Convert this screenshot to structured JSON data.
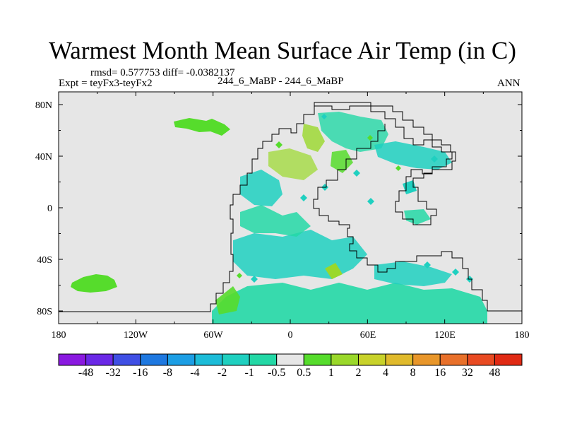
{
  "title": "Warmest Month Mean Surface Air Temp (in C)",
  "stats": "rmsd= 0.577753 diff= -0.0382137",
  "expt": "Expt = teyFx3-teyFx2",
  "cases": "244_6_MaBP - 244_6_MaBP",
  "season": "ANN",
  "axes": {
    "lon_labels": [
      "180",
      "120W",
      "60W",
      "0",
      "60E",
      "120E",
      "180"
    ],
    "lat_labels": [
      "80N",
      "40N",
      "0",
      "40S",
      "80S"
    ]
  },
  "colorbar": {
    "labels": [
      "-48",
      "-32",
      "-16",
      "-8",
      "-4",
      "-2",
      "-1",
      "-0.5",
      "0.5",
      "1",
      "2",
      "4",
      "8",
      "16",
      "32",
      "48"
    ],
    "colors": [
      "#8a19e0",
      "#6a28e6",
      "#3f4fe4",
      "#1e78e0",
      "#1c9ee4",
      "#1cbcd8",
      "#1fd0c0",
      "#23d8a6",
      "#e6e6e6",
      "#56dc2c",
      "#9ad82a",
      "#c8d22a",
      "#e0ba2c",
      "#e8962a",
      "#e8702a",
      "#e84a22",
      "#e02a14"
    ]
  },
  "chart_data": {
    "type": "heatmap",
    "title": "Warmest Month Mean Surface Air Temp (in C)",
    "projection": "cylindrical equidistant",
    "x_range": [
      -180,
      180
    ],
    "y_range": [
      -90,
      90
    ],
    "background_value_class": "-0.5 to 0.5",
    "dominant_classes": [
      "-1 to -0.5",
      "0.5 to 1",
      "1 to 2",
      "-2 to -1"
    ]
  }
}
